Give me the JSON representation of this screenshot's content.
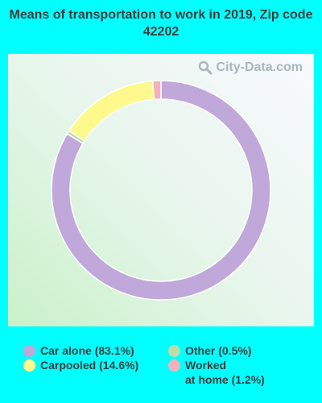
{
  "title": "Means of transportation to work in 2019, Zip code 42202",
  "watermark": "City-Data.com",
  "colors": {
    "background": "#00ffff",
    "car_alone": "#c0a8da",
    "carpooled": "#fdf98d",
    "other": "#bcdcaa",
    "worked_at_home": "#f2b3b8"
  },
  "chart_data": {
    "type": "pie",
    "donut": true,
    "title": "Means of transportation to work in 2019, Zip code 42202",
    "slices": [
      {
        "label": "Car alone",
        "value": 83.1,
        "color": "#c0a8da"
      },
      {
        "label": "Other",
        "value": 0.5,
        "color": "#bcdcaa"
      },
      {
        "label": "Carpooled",
        "value": 14.6,
        "color": "#fdf98d"
      },
      {
        "label": "Worked at home",
        "value": 1.2,
        "color": "#f2b3b8"
      }
    ],
    "legend_placement": "bottom"
  },
  "legend": [
    {
      "text": "Car alone (83.1%)",
      "color": "#c0a8da"
    },
    {
      "text": "Other (0.5%)",
      "color": "#bcdcaa"
    },
    {
      "text": "Carpooled (14.6%)",
      "color": "#fdf98d"
    },
    {
      "text": "Worked\nat home (1.2%)",
      "color": "#f2b3b8"
    }
  ]
}
